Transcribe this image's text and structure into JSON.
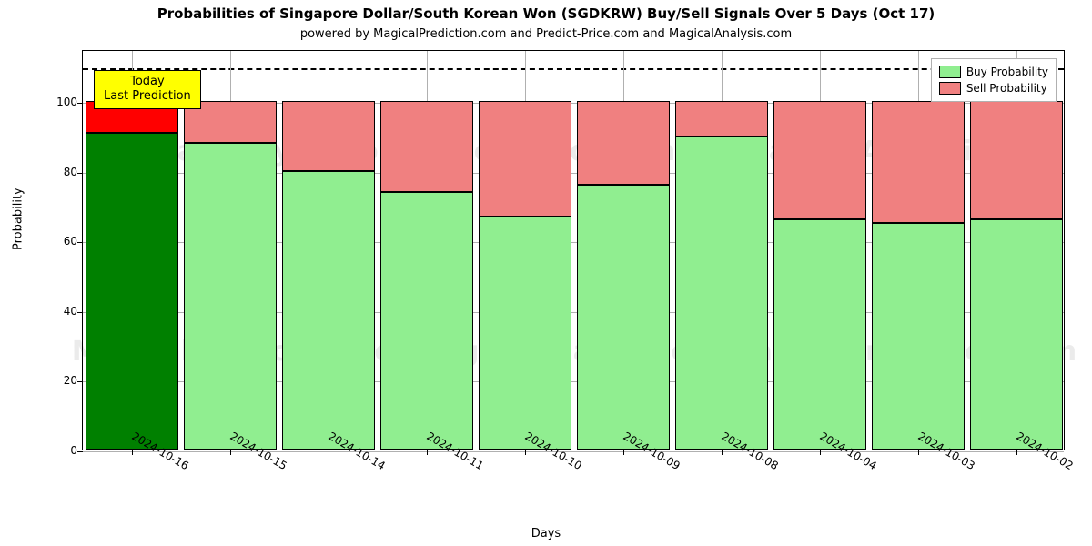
{
  "chart": {
    "type": "stacked-bar",
    "title": "Probabilities of Singapore Dollar/South Korean Won (SGDKRW) Buy/Sell Signals Over 5 Days (Oct 17)",
    "title_fontsize": 15,
    "subtitle": "powered by MagicalPrediction.com and Predict-Price.com and MagicalAnalysis.com",
    "subtitle_fontsize": 13,
    "xlabel": "Days",
    "ylabel": "Probability",
    "axis_label_fontsize": 13,
    "tick_fontsize": 12,
    "background_color": "#ffffff",
    "grid_color": "#b0b0b0",
    "border_color": "#000000",
    "ylim": [
      0,
      115
    ],
    "yticks": [
      0,
      20,
      40,
      60,
      80,
      100
    ],
    "dash_line_value": 110,
    "dash_line_color": "#000000",
    "categories": [
      "2024-10-16",
      "2024-10-15",
      "2024-10-14",
      "2024-10-11",
      "2024-10-10",
      "2024-10-09",
      "2024-10-08",
      "2024-10-04",
      "2024-10-03",
      "2024-10-02"
    ],
    "stack_total": 100,
    "buy_values": [
      91,
      88,
      80,
      74,
      67,
      76,
      90,
      66,
      65,
      66
    ],
    "buy_colors": [
      "#008000",
      "#90ee90",
      "#90ee90",
      "#90ee90",
      "#90ee90",
      "#90ee90",
      "#90ee90",
      "#90ee90",
      "#90ee90",
      "#90ee90"
    ],
    "sell_colors": [
      "#ff0000",
      "#f08080",
      "#f08080",
      "#f08080",
      "#f08080",
      "#f08080",
      "#f08080",
      "#f08080",
      "#f08080",
      "#f08080"
    ],
    "bar_width_ratio": 0.94,
    "bar_border_color": "#000000",
    "legend": {
      "position": "top-right",
      "bg": "#ffffff",
      "border": "#b0b0b0",
      "items": [
        {
          "label": "Buy Probability",
          "color": "#90ee90"
        },
        {
          "label": "Sell Probability",
          "color": "#f08080"
        }
      ]
    },
    "annotation": {
      "lines": [
        "Today",
        "Last Prediction"
      ],
      "bg": "#ffff00",
      "border": "#000000",
      "fontsize": 13
    },
    "watermarks": {
      "texts": [
        "MagicalAnalysis.com",
        "MagicalPrediction.com",
        "MagicalAnalysis.com",
        "MagicalPrediction.com",
        "MagicalAnalysis.com",
        "MagicalPrediction.com"
      ],
      "color": "rgba(0,0,0,0.08)",
      "fontsize": 30
    }
  }
}
